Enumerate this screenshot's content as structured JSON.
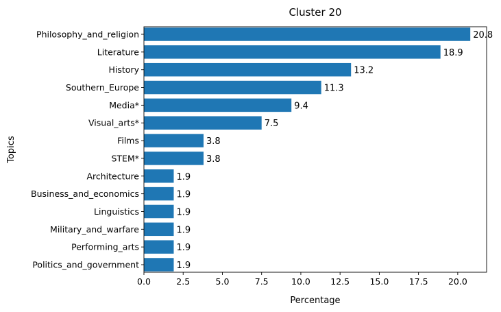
{
  "chart_data": {
    "type": "bar",
    "orientation": "horizontal",
    "title": "Cluster 20",
    "xlabel": "Percentage",
    "ylabel": "Topics",
    "categories": [
      "Philosophy_and_religion",
      "Literature",
      "History",
      "Southern_Europe",
      "Media*",
      "Visual_arts*",
      "Films",
      "STEM*",
      "Architecture",
      "Business_and_economics",
      "Linguistics",
      "Military_and_warfare",
      "Performing_arts",
      "Politics_and_government"
    ],
    "values": [
      20.8,
      18.9,
      13.2,
      11.3,
      9.4,
      7.5,
      3.8,
      3.8,
      1.9,
      1.9,
      1.9,
      1.9,
      1.9,
      1.9
    ],
    "value_labels": [
      "20.8",
      "18.9",
      "13.2",
      "11.3",
      "9.4",
      "7.5",
      "3.8",
      "3.8",
      "1.9",
      "1.9",
      "1.9",
      "1.9",
      "1.9",
      "1.9"
    ],
    "xlim": [
      0,
      21.84
    ],
    "xticks": [
      "0.0",
      "2.5",
      "5.0",
      "7.5",
      "10.0",
      "12.5",
      "15.0",
      "17.5",
      "20.0"
    ],
    "grid": false,
    "bar_color": "#1f77b4"
  }
}
